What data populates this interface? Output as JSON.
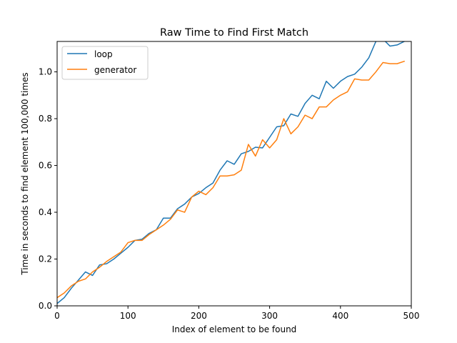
{
  "chart_data": {
    "type": "line",
    "title": "Raw Time to Find First Match",
    "xlabel": "Index of element to be found",
    "ylabel": "Time in seconds to find element 100,000 times",
    "xlim": [
      0,
      500
    ],
    "ylim": [
      0,
      1.13
    ],
    "xticks": [
      0,
      100,
      200,
      300,
      400,
      500
    ],
    "yticks": [
      0.0,
      0.2,
      0.4,
      0.6,
      0.8,
      1.0
    ],
    "xtick_labels": [
      "0",
      "100",
      "200",
      "300",
      "400",
      "500"
    ],
    "ytick_labels": [
      "0.0",
      "0.2",
      "0.4",
      "0.6",
      "0.8",
      "1.0"
    ],
    "grid": false,
    "legend_position": "top-left",
    "x": [
      0,
      10,
      20,
      30,
      40,
      50,
      60,
      70,
      80,
      90,
      100,
      110,
      120,
      130,
      140,
      150,
      160,
      170,
      180,
      190,
      200,
      210,
      220,
      230,
      240,
      250,
      260,
      270,
      280,
      290,
      300,
      310,
      320,
      330,
      340,
      350,
      360,
      370,
      380,
      390,
      400,
      410,
      420,
      430,
      440,
      450,
      460,
      470,
      480,
      490
    ],
    "series": [
      {
        "name": "loop",
        "color": "#1f77b4",
        "values": [
          0.01,
          0.035,
          0.075,
          0.11,
          0.145,
          0.13,
          0.175,
          0.18,
          0.2,
          0.225,
          0.25,
          0.28,
          0.285,
          0.31,
          0.325,
          0.375,
          0.375,
          0.415,
          0.435,
          0.465,
          0.48,
          0.505,
          0.525,
          0.58,
          0.62,
          0.605,
          0.65,
          0.66,
          0.678,
          0.675,
          0.72,
          0.765,
          0.77,
          0.82,
          0.81,
          0.865,
          0.9,
          0.885,
          0.96,
          0.93,
          0.96,
          0.98,
          0.99,
          1.02,
          1.06,
          1.13,
          1.14,
          1.11,
          1.115,
          1.13
        ]
      },
      {
        "name": "generator",
        "color": "#ff7f0e",
        "values": [
          0.035,
          0.055,
          0.085,
          0.105,
          0.115,
          0.145,
          0.165,
          0.19,
          0.21,
          0.23,
          0.27,
          0.28,
          0.28,
          0.305,
          0.325,
          0.345,
          0.37,
          0.41,
          0.4,
          0.465,
          0.49,
          0.475,
          0.505,
          0.555,
          0.555,
          0.56,
          0.58,
          0.69,
          0.64,
          0.71,
          0.675,
          0.71,
          0.8,
          0.735,
          0.765,
          0.815,
          0.8,
          0.85,
          0.85,
          0.88,
          0.9,
          0.915,
          0.97,
          0.965,
          0.965,
          1.0,
          1.04,
          1.035,
          1.035,
          1.045
        ]
      }
    ]
  }
}
